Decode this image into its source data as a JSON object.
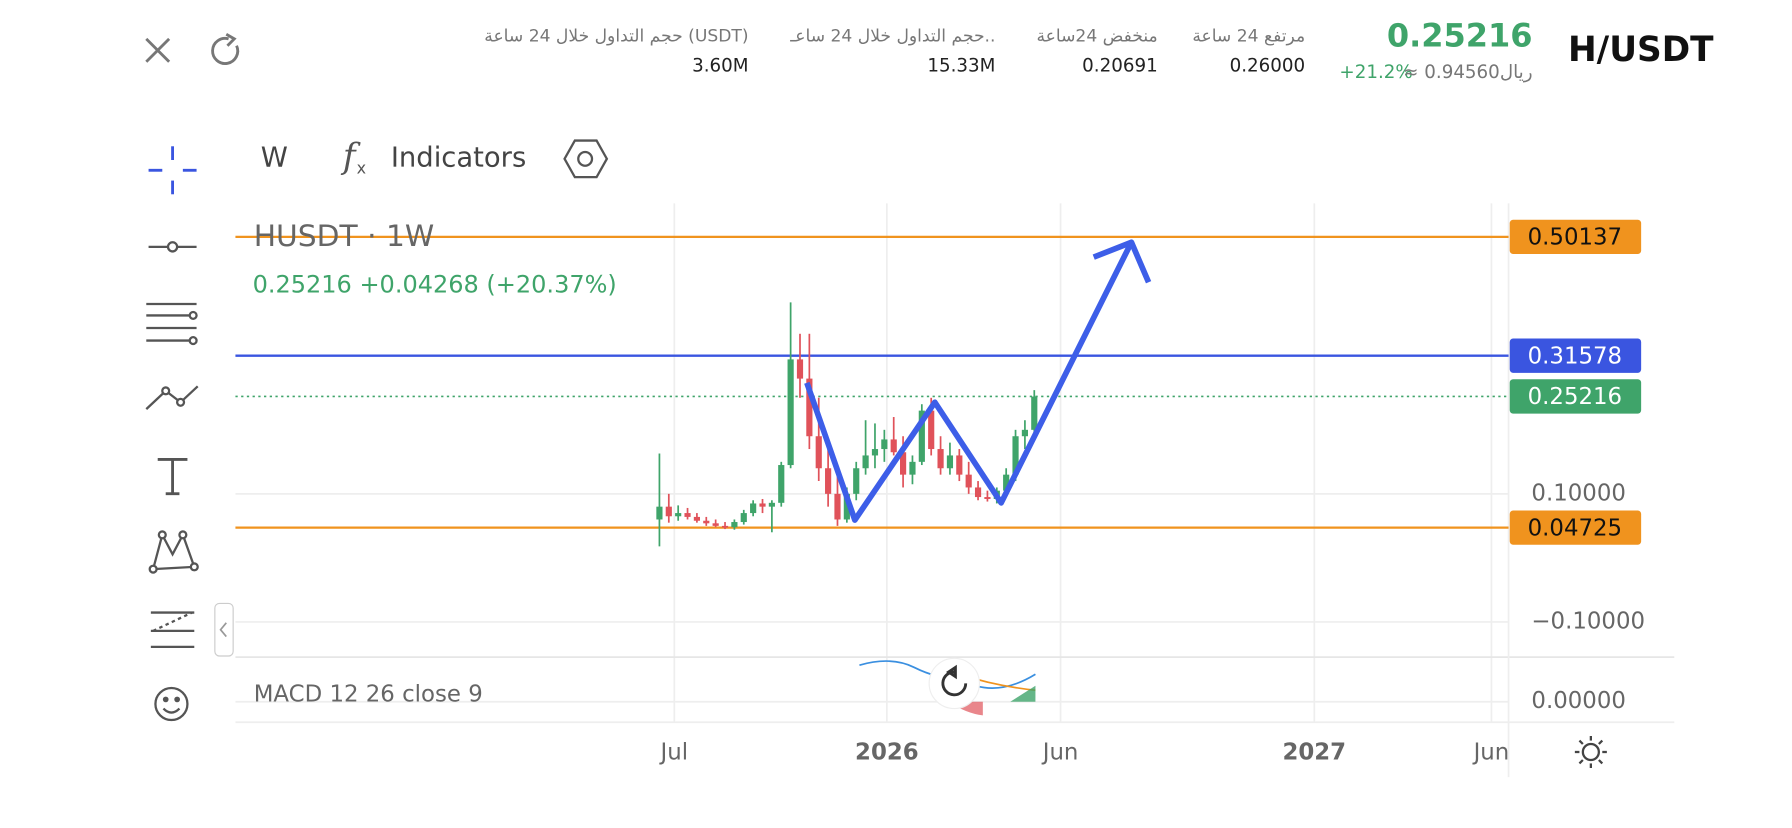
{
  "header": {
    "pair": "H/USDT",
    "price": "0.25216",
    "change": "+21.2%",
    "local_price": "≈ ريال0.94560",
    "stats": [
      {
        "label": "مرتفع 24 ساعة",
        "value": "0.26000"
      },
      {
        "label": "منخفض 24ساعة",
        "value": "0.20691"
      },
      {
        "label": "حجم التداول خلال 24 ساعـ..",
        "value": "15.33M"
      },
      {
        "label": "حجم التداول خلال 24 ساعة (USDT)",
        "value": "3.60M"
      }
    ]
  },
  "toolbar": {
    "interval": "W",
    "indicators": "Indicators"
  },
  "chart_data": {
    "type": "candlestick",
    "legend": "HUSDT · 1W",
    "quote": "0.25216  +0.04268 (+20.37%)",
    "indicator": "MACD 12 26 close 9",
    "up_color": "#3fa46a",
    "down_color": "#e0525a",
    "open": [
      0.06,
      0.08,
      0.065,
      0.07,
      0.064,
      0.058,
      0.054,
      0.05,
      0.048,
      0.056,
      0.07,
      0.085,
      0.08,
      0.086,
      0.145,
      0.31,
      0.28,
      0.19,
      0.14,
      0.1,
      0.06,
      0.1,
      0.14,
      0.16,
      0.17,
      0.185,
      0.165,
      0.13,
      0.15,
      0.23,
      0.17,
      0.14,
      0.16,
      0.13,
      0.11,
      0.095,
      0.092,
      0.105,
      0.13,
      0.19,
      0.2
    ],
    "high": [
      0.163,
      0.1,
      0.082,
      0.078,
      0.07,
      0.064,
      0.06,
      0.056,
      0.06,
      0.075,
      0.09,
      0.092,
      0.09,
      0.15,
      0.399,
      0.35,
      0.35,
      0.25,
      0.18,
      0.13,
      0.11,
      0.15,
      0.215,
      0.21,
      0.2,
      0.22,
      0.19,
      0.16,
      0.24,
      0.25,
      0.19,
      0.18,
      0.17,
      0.15,
      0.12,
      0.105,
      0.11,
      0.14,
      0.2,
      0.215,
      0.262
    ],
    "low": [
      0.018,
      0.055,
      0.058,
      0.06,
      0.055,
      0.05,
      0.048,
      0.045,
      0.044,
      0.052,
      0.065,
      0.07,
      0.04,
      0.08,
      0.14,
      0.25,
      0.17,
      0.12,
      0.08,
      0.05,
      0.055,
      0.09,
      0.13,
      0.14,
      0.15,
      0.16,
      0.11,
      0.115,
      0.145,
      0.16,
      0.13,
      0.13,
      0.12,
      0.1,
      0.09,
      0.088,
      0.085,
      0.1,
      0.12,
      0.17,
      0.195
    ],
    "close": [
      0.08,
      0.065,
      0.07,
      0.064,
      0.058,
      0.054,
      0.05,
      0.048,
      0.056,
      0.07,
      0.085,
      0.08,
      0.086,
      0.145,
      0.31,
      0.28,
      0.19,
      0.14,
      0.1,
      0.06,
      0.1,
      0.14,
      0.16,
      0.17,
      0.185,
      0.165,
      0.13,
      0.15,
      0.23,
      0.17,
      0.14,
      0.16,
      0.13,
      0.11,
      0.095,
      0.092,
      0.105,
      0.13,
      0.19,
      0.2,
      0.252
    ],
    "levels": [
      {
        "value": 0.50137,
        "color": "#f0931e",
        "style": "solid"
      },
      {
        "value": 0.31578,
        "color": "#3a55e0",
        "style": "solid"
      },
      {
        "value": 0.25216,
        "color": "#3fa46a",
        "style": "dotted"
      },
      {
        "value": 0.04725,
        "color": "#f0931e",
        "style": "solid"
      }
    ],
    "ylim": [
      -0.155,
      0.55
    ],
    "yticks": [
      {
        "value": 0.1,
        "label": "0.10000"
      },
      {
        "value": -0.1,
        "label": "−0.10000"
      }
    ],
    "macd_tick": "0.00000",
    "x_labels": [
      "Jul",
      "2026",
      "Jun",
      "2027",
      "Jun"
    ],
    "grid": true
  }
}
